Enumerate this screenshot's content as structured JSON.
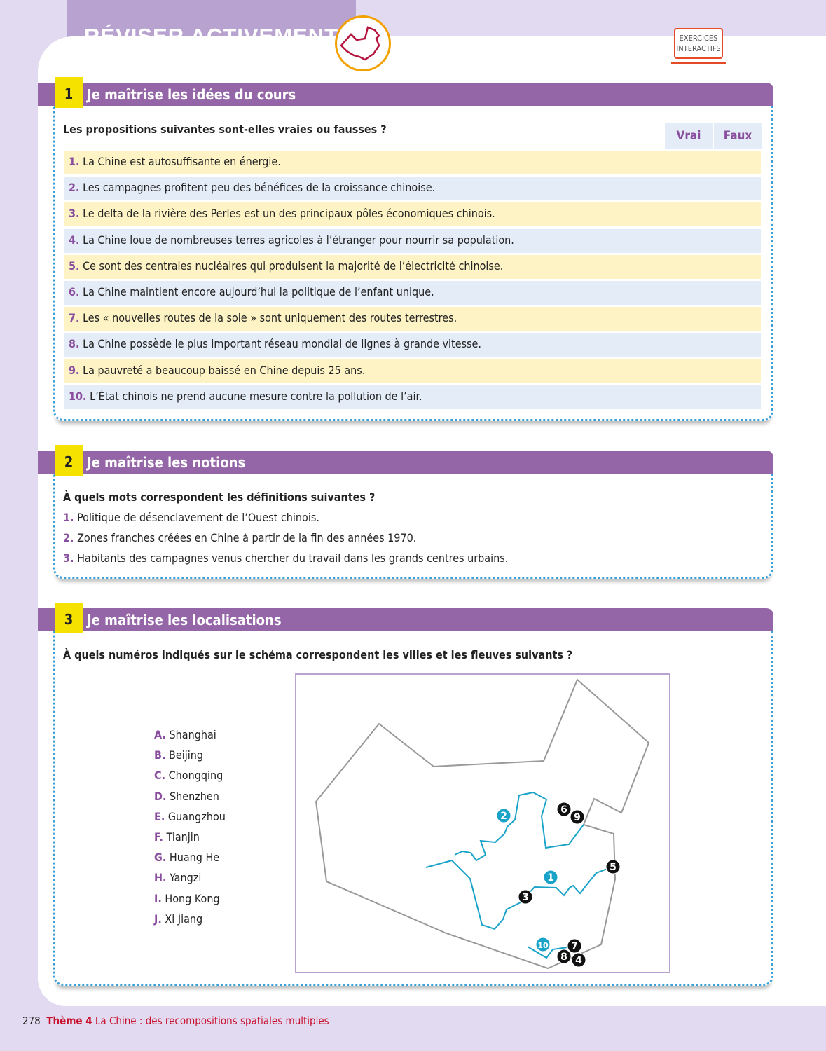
{
  "header": {
    "title": "RÉVISER ACTIVEMENT",
    "logo_icon": "china-map-icon",
    "interactive_label_1": "EXERCICES",
    "interactive_label_2": "INTERACTIFS"
  },
  "colors": {
    "accent": "#9566a7",
    "highlight": "#f5e200",
    "river": "#1aa3c8"
  },
  "s1": {
    "num": "1",
    "title": "Je maîtrise les idées du cours",
    "question": "Les propositions suivantes sont-elles vraies ou fausses ?",
    "col_true": "Vrai",
    "col_false": "Faux",
    "items": [
      {
        "n": "1.",
        "t": "La Chine est autosuffisante en énergie."
      },
      {
        "n": "2.",
        "t": "Les campagnes profitent peu des bénéfices de la croissance chinoise."
      },
      {
        "n": "3.",
        "t": "Le delta de la rivière des Perles est un des principaux pôles économiques chinois."
      },
      {
        "n": "4.",
        "t": "La Chine loue de nombreuses terres agricoles à l’étranger pour nourrir sa population."
      },
      {
        "n": "5.",
        "t": "Ce sont des centrales nucléaires qui produisent la majorité de l’électricité chinoise."
      },
      {
        "n": "6.",
        "t": "La Chine maintient encore aujourd’hui la politique de l’enfant unique."
      },
      {
        "n": "7.",
        "t": "Les « nouvelles routes de la soie » sont uniquement des routes terrestres."
      },
      {
        "n": "8.",
        "t": "La Chine possède le plus important réseau mondial de lignes à grande vitesse."
      },
      {
        "n": "9.",
        "t": "La pauvreté a beaucoup baissé en Chine depuis 25 ans."
      },
      {
        "n": "10.",
        "t": "L’État chinois ne prend aucune mesure contre la pollution de l’air."
      }
    ]
  },
  "s2": {
    "num": "2",
    "title": "Je maîtrise les notions",
    "question": "À quels mots correspondent les définitions suivantes ?",
    "items": [
      {
        "n": "1.",
        "t": "Politique de désenclavement de l’Ouest chinois."
      },
      {
        "n": "2.",
        "t": "Zones franches créées en Chine à partir de la fin des années 1970."
      },
      {
        "n": "3.",
        "t": "Habitants des campagnes venus chercher du travail dans les grands centres urbains."
      }
    ]
  },
  "s3": {
    "num": "3",
    "title": "Je maîtrise les localisations",
    "question": "À quels numéros indiqués sur le schéma correspondent les villes et les fleuves suivants ?",
    "items": [
      {
        "n": "A.",
        "t": "Shanghai"
      },
      {
        "n": "B.",
        "t": "Beijing"
      },
      {
        "n": "C.",
        "t": "Chongqing"
      },
      {
        "n": "D.",
        "t": "Shenzhen"
      },
      {
        "n": "E.",
        "t": "Guangzhou"
      },
      {
        "n": "F.",
        "t": "Tianjin"
      },
      {
        "n": "G.",
        "t": "Huang He"
      },
      {
        "n": "H.",
        "t": "Yangzi"
      },
      {
        "n": "I.",
        "t": "Hong Kong"
      },
      {
        "n": "J.",
        "t": "Xi Jiang"
      }
    ],
    "map_city_markers": [
      "3",
      "4",
      "5",
      "6",
      "7",
      "8",
      "9"
    ],
    "map_river_markers": [
      "1",
      "2",
      "10"
    ]
  },
  "footer": {
    "page": "278",
    "theme": "Thème 4",
    "subtitle": "La Chine : des recompositions spatiales multiples"
  }
}
